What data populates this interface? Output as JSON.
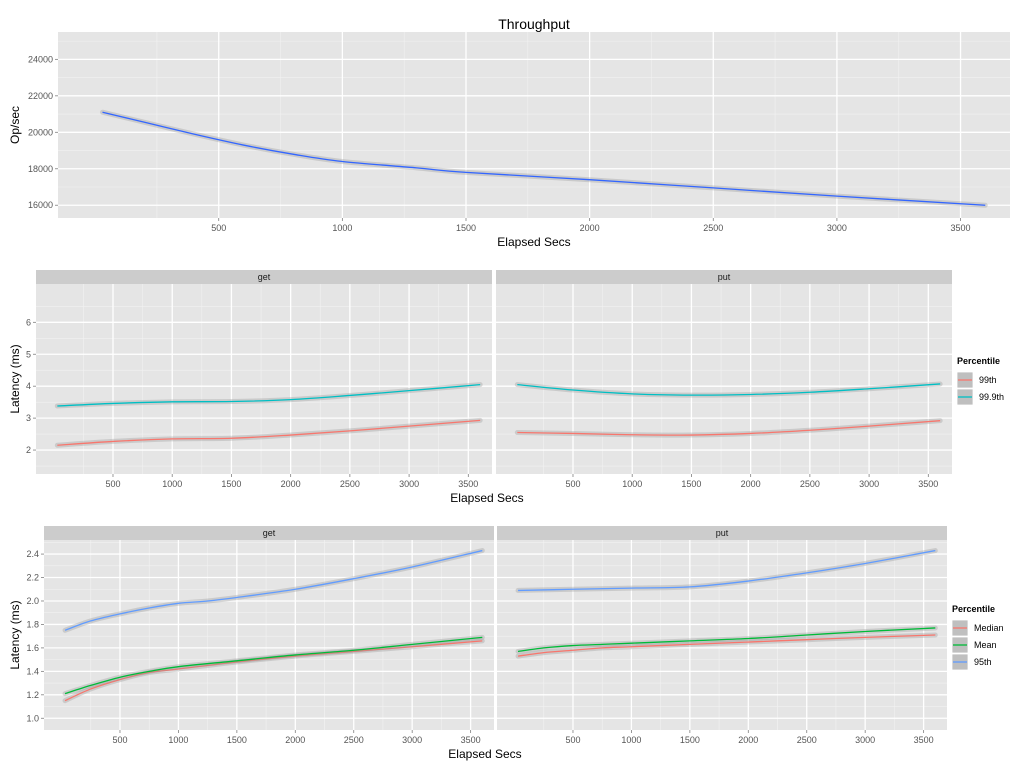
{
  "chart_data": [
    {
      "type": "line",
      "title": "Throughput",
      "xlabel": "Elapsed Secs",
      "ylabel": "Op/sec",
      "xlim": [
        -150,
        3700
      ],
      "ylim": [
        15300,
        25500
      ],
      "xticks": [
        500,
        1000,
        1500,
        2000,
        2500,
        3000,
        3500
      ],
      "yticks": [
        16000,
        18000,
        20000,
        22000,
        24000
      ],
      "grid": true,
      "series": [
        {
          "color": "#3366FF",
          "x": [
            30,
            200,
            400,
            600,
            800,
            1000,
            1300,
            1500,
            2000,
            2500,
            3000,
            3600
          ],
          "y": [
            21100,
            20550,
            19900,
            19300,
            18800,
            18400,
            18050,
            17800,
            17400,
            16950,
            16500,
            16000
          ]
        }
      ]
    },
    {
      "type": "line",
      "xlabel": "Elapsed Secs",
      "ylabel": "Latency (ms)",
      "xlim": [
        -150,
        3700
      ],
      "ylim": [
        1.25,
        7.2
      ],
      "xticks": [
        500,
        1000,
        1500,
        2000,
        2500,
        3000,
        3500
      ],
      "yticks": [
        2,
        3,
        4,
        5,
        6
      ],
      "grid": true,
      "legend": {
        "title": "Percentile",
        "position": "right",
        "entries": [
          "99th",
          "99.9th"
        ]
      },
      "facets": [
        {
          "label": "get",
          "series": [
            {
              "name": "99th",
              "color": "#F8766D",
              "x": [
                30,
                500,
                1000,
                1500,
                2000,
                2500,
                3000,
                3600
              ],
              "y": [
                2.15,
                2.27,
                2.35,
                2.37,
                2.47,
                2.6,
                2.75,
                2.93
              ]
            },
            {
              "name": "99.9th",
              "color": "#00BFC4",
              "x": [
                30,
                500,
                1000,
                1500,
                2000,
                2500,
                3000,
                3600
              ],
              "y": [
                3.38,
                3.46,
                3.51,
                3.52,
                3.58,
                3.71,
                3.86,
                4.05
              ]
            }
          ]
        },
        {
          "label": "put",
          "series": [
            {
              "name": "99th",
              "color": "#F8766D",
              "x": [
                30,
                500,
                1000,
                1500,
                2000,
                2500,
                3000,
                3600
              ],
              "y": [
                2.55,
                2.52,
                2.48,
                2.47,
                2.52,
                2.62,
                2.75,
                2.92
              ]
            },
            {
              "name": "99.9th",
              "color": "#00BFC4",
              "x": [
                30,
                500,
                1000,
                1500,
                2000,
                2500,
                3000,
                3600
              ],
              "y": [
                4.05,
                3.88,
                3.76,
                3.72,
                3.74,
                3.81,
                3.92,
                4.07
              ]
            }
          ]
        }
      ]
    },
    {
      "type": "line",
      "xlabel": "Elapsed Secs",
      "ylabel": "Latency (ms)",
      "xlim": [
        -150,
        3700
      ],
      "ylim": [
        0.9,
        2.52
      ],
      "xticks": [
        500,
        1000,
        1500,
        2000,
        2500,
        3000,
        3500
      ],
      "yticks": [
        1.0,
        1.2,
        1.4,
        1.6,
        1.8,
        2.0,
        2.2,
        2.4
      ],
      "ytick_labels": [
        "1.0",
        "1.2",
        "1.4",
        "1.6",
        "1.8",
        "2.0",
        "2.2",
        "2.4"
      ],
      "grid": true,
      "legend": {
        "title": "Percentile",
        "position": "right",
        "entries": [
          "Median",
          "Mean",
          "95th"
        ]
      },
      "facets": [
        {
          "label": "get",
          "series": [
            {
              "name": "Median",
              "color": "#F8766D",
              "x": [
                30,
                250,
                500,
                750,
                1000,
                1500,
                2000,
                2500,
                3000,
                3600
              ],
              "y": [
                1.15,
                1.25,
                1.33,
                1.39,
                1.42,
                1.48,
                1.53,
                1.57,
                1.61,
                1.66
              ]
            },
            {
              "name": "Mean",
              "color": "#00BA38",
              "x": [
                30,
                250,
                500,
                750,
                1000,
                1500,
                2000,
                2500,
                3000,
                3600
              ],
              "y": [
                1.21,
                1.28,
                1.35,
                1.4,
                1.44,
                1.49,
                1.54,
                1.58,
                1.63,
                1.69
              ]
            },
            {
              "name": "95th",
              "color": "#619CFF",
              "x": [
                30,
                250,
                500,
                750,
                1000,
                1250,
                1500,
                2000,
                2500,
                3000,
                3600
              ],
              "y": [
                1.75,
                1.83,
                1.89,
                1.94,
                1.98,
                2.0,
                2.03,
                2.1,
                2.19,
                2.29,
                2.43
              ]
            }
          ]
        },
        {
          "label": "put",
          "series": [
            {
              "name": "Median",
              "color": "#F8766D",
              "x": [
                30,
                250,
                500,
                750,
                1000,
                1500,
                2000,
                2500,
                3000,
                3600
              ],
              "y": [
                1.53,
                1.56,
                1.58,
                1.6,
                1.61,
                1.63,
                1.65,
                1.67,
                1.69,
                1.71
              ]
            },
            {
              "name": "Mean",
              "color": "#00BA38",
              "x": [
                30,
                250,
                500,
                750,
                1000,
                1500,
                2000,
                2500,
                3000,
                3600
              ],
              "y": [
                1.57,
                1.6,
                1.62,
                1.63,
                1.64,
                1.66,
                1.68,
                1.71,
                1.74,
                1.77
              ]
            },
            {
              "name": "95th",
              "color": "#619CFF",
              "x": [
                30,
                500,
                1000,
                1500,
                2000,
                2500,
                3000,
                3600
              ],
              "y": [
                2.09,
                2.1,
                2.11,
                2.12,
                2.17,
                2.24,
                2.32,
                2.43
              ]
            }
          ]
        }
      ]
    }
  ]
}
